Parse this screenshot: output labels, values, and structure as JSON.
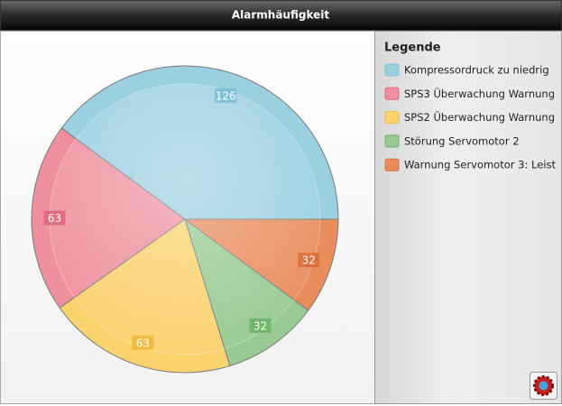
{
  "chart_data": {
    "type": "pie",
    "title": "Alarmhäufigkeit",
    "legend_title": "Legende",
    "categories": [
      "Kompressordruck zu niedrig",
      "SPS3 Überwachung Warnung",
      "SPS2 Überwachung Warnung",
      "Störung Servomotor 2",
      "Warnung Servomotor 3: Leist"
    ],
    "values": [
      126,
      63,
      63,
      32,
      32
    ],
    "colors": [
      "#9bd0e0",
      "#ef909f",
      "#fad36f",
      "#98cb93",
      "#e98d5d"
    ],
    "label_colors": [
      "#7dbfd6",
      "#e0697e",
      "#f0b93b",
      "#6ab566",
      "#d9703a"
    ]
  }
}
